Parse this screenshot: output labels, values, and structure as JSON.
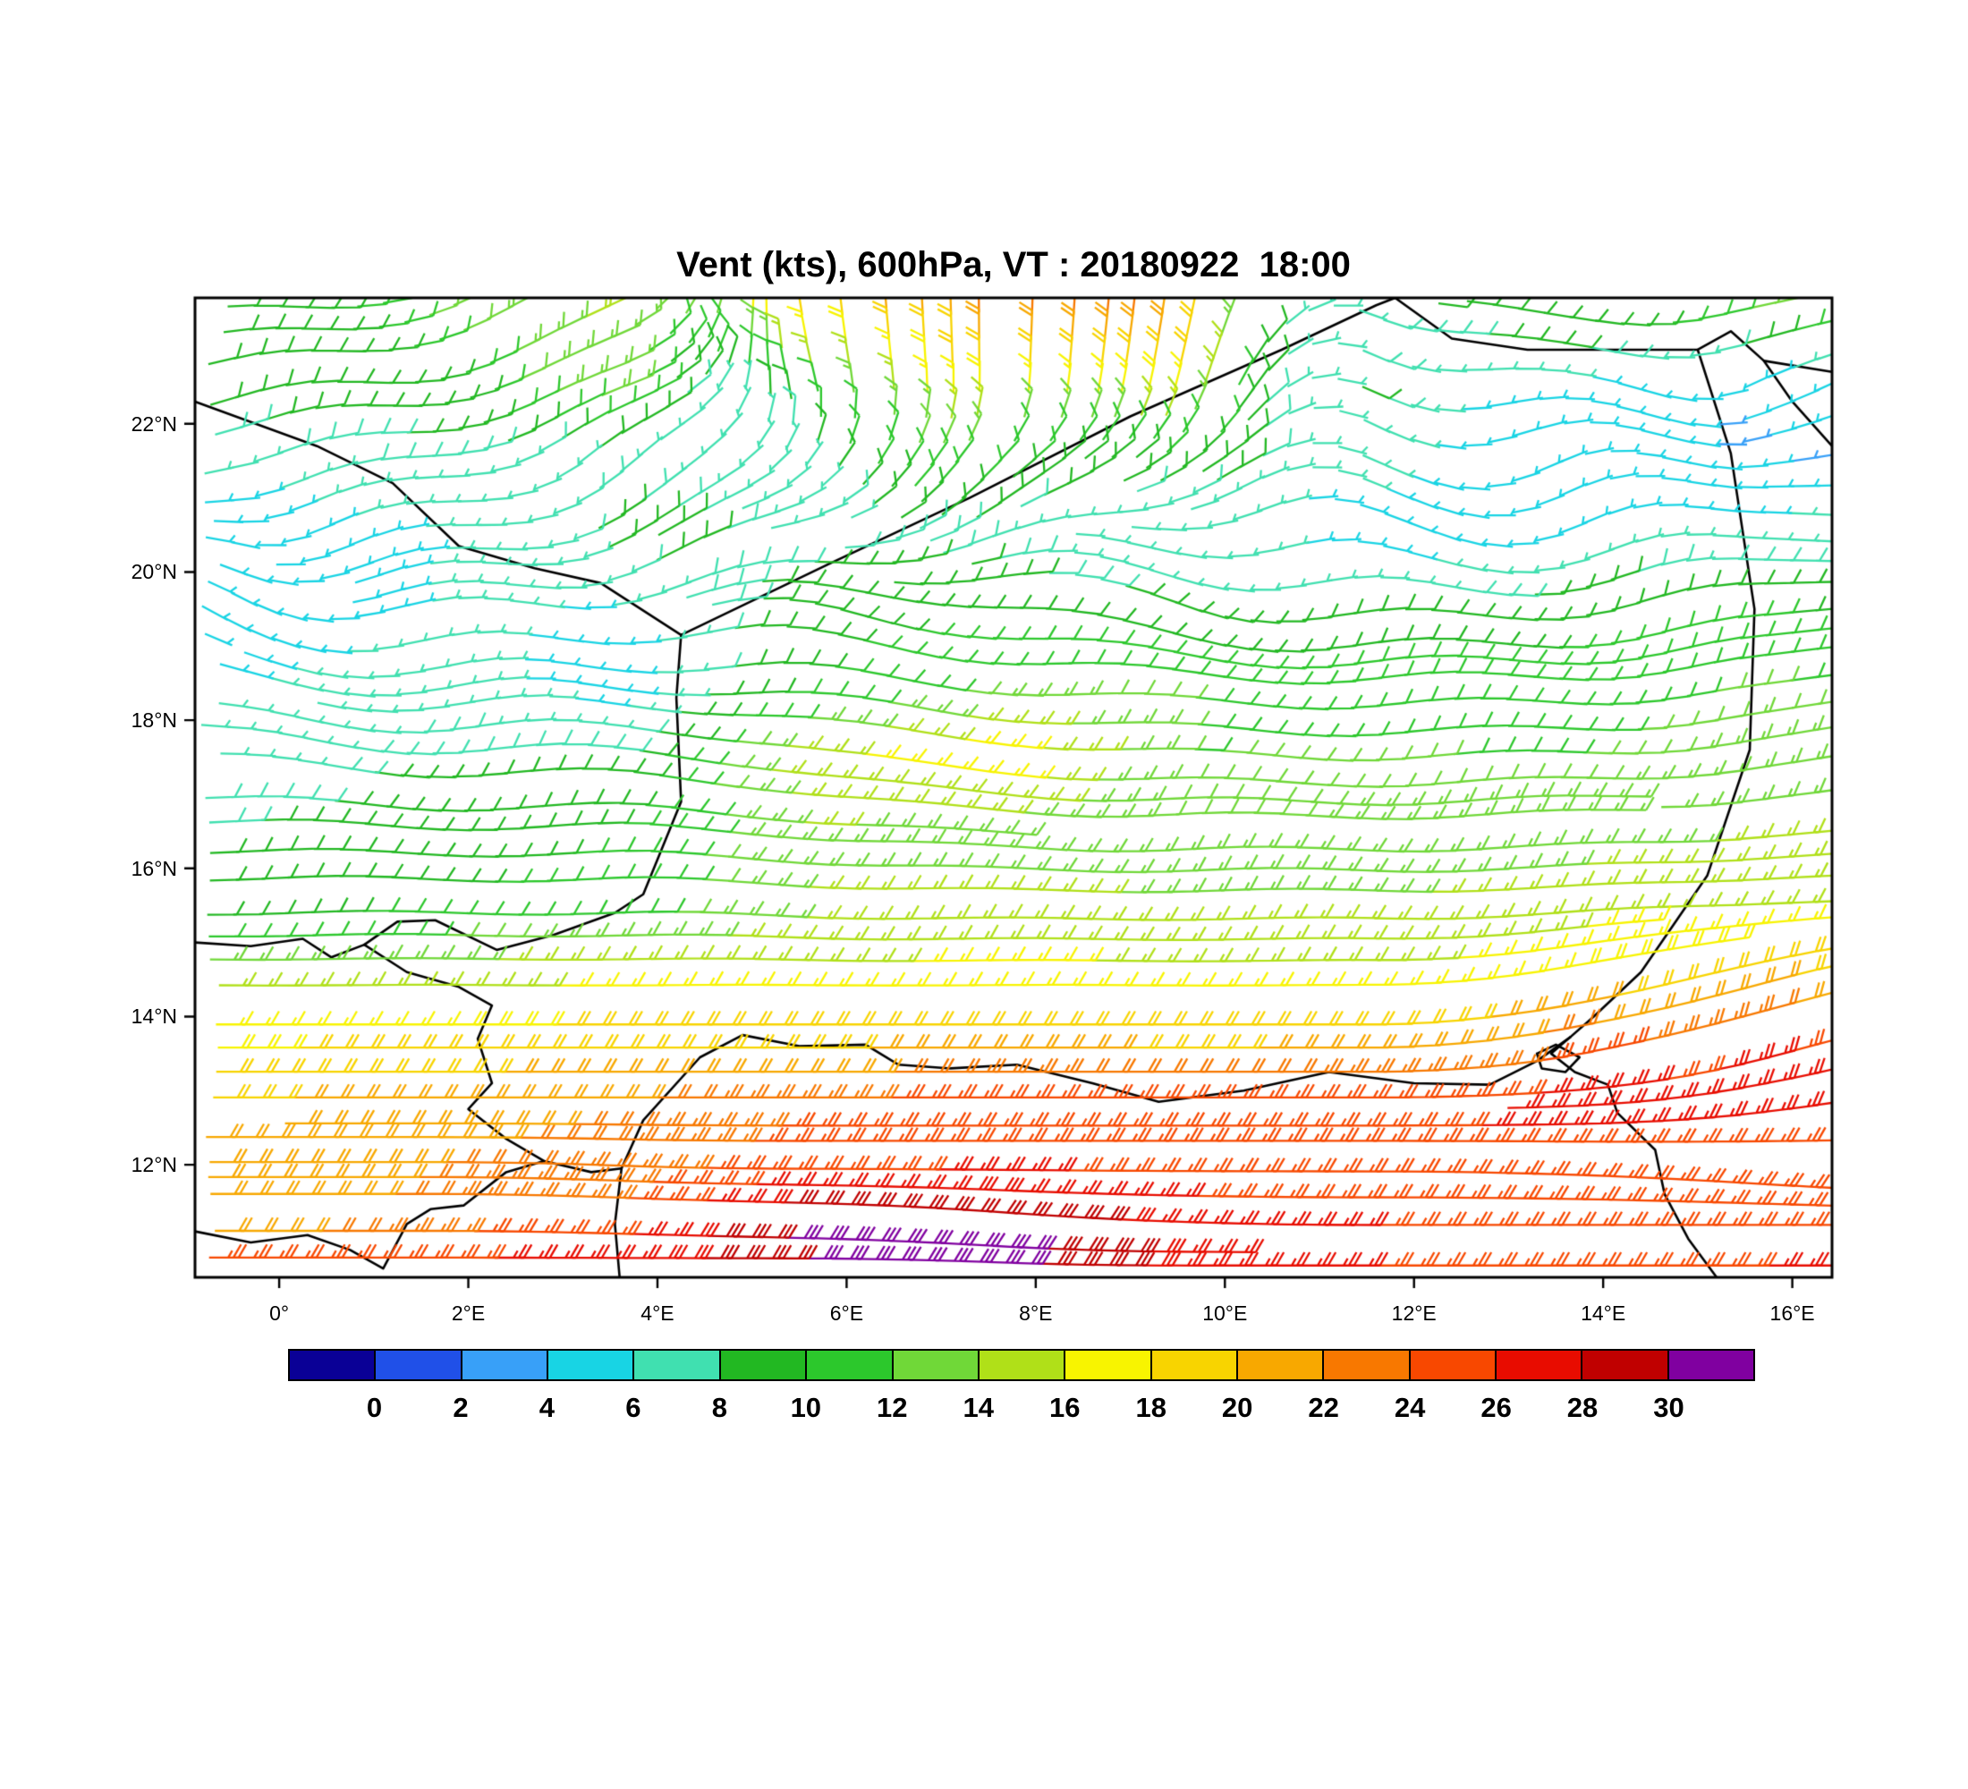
{
  "chart_data": {
    "type": "wind_barbs",
    "title": "Vent (kts), 600hPa, VT : 20180922  18:00",
    "units": "kts",
    "level": "600hPa",
    "valid_time": "20180922 18:00",
    "x_axis": {
      "range": [
        -0.89,
        16.42
      ],
      "tick_values": [
        0,
        2,
        4,
        6,
        8,
        10,
        12,
        14,
        16
      ],
      "tick_labels": [
        "0°",
        "2°E",
        "4°E",
        "6°E",
        "8°E",
        "10°E",
        "12°E",
        "14°E",
        "16°E"
      ]
    },
    "y_axis": {
      "range": [
        10.48,
        23.7
      ],
      "tick_values": [
        12,
        14,
        16,
        18,
        20,
        22
      ],
      "tick_labels": [
        "12°N",
        "14°N",
        "16°N",
        "18°N",
        "20°N",
        "22°N"
      ]
    },
    "colorbar": {
      "boundaries": [
        0,
        2,
        4,
        6,
        8,
        10,
        12,
        14,
        16,
        18,
        20,
        22,
        24,
        26,
        28,
        30
      ],
      "tick_labels": [
        "0",
        "2",
        "4",
        "6",
        "8",
        "10",
        "12",
        "14",
        "16",
        "18",
        "20",
        "22",
        "24",
        "26",
        "28",
        "30"
      ],
      "colors": [
        "#0A0096",
        "#2050E8",
        "#38A0F8",
        "#18D4E4",
        "#40E0B0",
        "#22B822",
        "#2CC82C",
        "#70D838",
        "#B0E018",
        "#F8F400",
        "#F8D400",
        "#F8A800",
        "#F87800",
        "#F84800",
        "#E80C00",
        "#C00000",
        "#8000A0"
      ]
    },
    "wind_grid": {
      "lons": [
        -0.5,
        1.5,
        3.5,
        5.5,
        7.5,
        9.5,
        11.5,
        13.5,
        15.5
      ],
      "lats": [
        23.5,
        22.5,
        21.5,
        20.5,
        19.5,
        18.5,
        17.5,
        16.5,
        15.5,
        14.5,
        13.5,
        12.8,
        12.0,
        11.2,
        10.7
      ],
      "speed_kts": [
        [
          8,
          12,
          15,
          18,
          24,
          20,
          8,
          10,
          12
        ],
        [
          8,
          9,
          14,
          10,
          20,
          16,
          8,
          5,
          4
        ],
        [
          7,
          8,
          6,
          8,
          12,
          9,
          6,
          4,
          4
        ],
        [
          4,
          6,
          8,
          8,
          7,
          6,
          5,
          5,
          7
        ],
        [
          4,
          6,
          6,
          9,
          10,
          8,
          8,
          9,
          10
        ],
        [
          6,
          7,
          5,
          10,
          12,
          12,
          11,
          11,
          12
        ],
        [
          7,
          8,
          8,
          16,
          18,
          12,
          12,
          12,
          13
        ],
        [
          8,
          9,
          10,
          14,
          13,
          12,
          13,
          13,
          14
        ],
        [
          9,
          10,
          11,
          14,
          15,
          14,
          14,
          15,
          16
        ],
        [
          15,
          15,
          16,
          16,
          17,
          16,
          16,
          18,
          20
        ],
        [
          18,
          19,
          20,
          20,
          21,
          20,
          21,
          24,
          26
        ],
        [
          20,
          21,
          22,
          24,
          26,
          26,
          26,
          27,
          27
        ],
        [
          21,
          22,
          23,
          25,
          26,
          25,
          25,
          25,
          24
        ],
        [
          20,
          23,
          25,
          31,
          30,
          27,
          26,
          25,
          25
        ],
        [
          25,
          26,
          27,
          30,
          31,
          27,
          26,
          25,
          26
        ]
      ],
      "dir_from_deg": [
        [
          90,
          75,
          60,
          350,
          0,
          10,
          120,
          90,
          85
        ],
        [
          85,
          80,
          70,
          340,
          0,
          15,
          110,
          90,
          80
        ],
        [
          85,
          75,
          60,
          30,
          40,
          60,
          100,
          85,
          75
        ],
        [
          90,
          80,
          70,
          70,
          80,
          90,
          95,
          85,
          80
        ],
        [
          100,
          90,
          80,
          95,
          100,
          100,
          90,
          85,
          80
        ],
        [
          95,
          90,
          85,
          95,
          95,
          92,
          90,
          88,
          85
        ],
        [
          95,
          92,
          90,
          100,
          95,
          92,
          90,
          88,
          85
        ],
        [
          92,
          90,
          90,
          95,
          92,
          90,
          90,
          88,
          86
        ],
        [
          90,
          90,
          90,
          92,
          90,
          90,
          90,
          88,
          87
        ],
        [
          90,
          90,
          90,
          90,
          90,
          90,
          90,
          80,
          75
        ],
        [
          90,
          90,
          90,
          90,
          90,
          90,
          90,
          80,
          75
        ],
        [
          90,
          90,
          90,
          90,
          90,
          90,
          90,
          88,
          82
        ],
        [
          90,
          90,
          92,
          90,
          90,
          90,
          90,
          92,
          95
        ],
        [
          90,
          90,
          92,
          92,
          95,
          92,
          90,
          90,
          90
        ],
        [
          90,
          90,
          90,
          90,
          92,
          90,
          90,
          90,
          90
        ]
      ]
    },
    "map_borders": [
      {
        "name": "mali-algeria",
        "points": [
          [
            -0.89,
            22.3
          ],
          [
            0.4,
            21.7
          ],
          [
            1.2,
            21.2
          ],
          [
            1.9,
            20.35
          ],
          [
            2.7,
            20.05
          ],
          [
            3.4,
            19.85
          ],
          [
            4.25,
            19.15
          ]
        ]
      },
      {
        "name": "algeria-niger",
        "points": [
          [
            4.25,
            19.15
          ],
          [
            5.8,
            20.1
          ],
          [
            7.3,
            21.0
          ],
          [
            9.0,
            22.1
          ],
          [
            10.6,
            23.0
          ],
          [
            11.6,
            23.6
          ],
          [
            11.8,
            23.7
          ]
        ]
      },
      {
        "name": "libya-south",
        "points": [
          [
            11.8,
            23.7
          ],
          [
            12.4,
            23.15
          ],
          [
            13.2,
            23.0
          ],
          [
            14.2,
            23.0
          ],
          [
            15.0,
            23.0
          ],
          [
            15.35,
            23.25
          ],
          [
            15.7,
            22.85
          ],
          [
            16.42,
            22.7
          ]
        ]
      },
      {
        "name": "libya-chad",
        "points": [
          [
            15.7,
            22.85
          ],
          [
            16.0,
            22.3
          ],
          [
            16.42,
            21.7
          ]
        ]
      },
      {
        "name": "niger-chad",
        "points": [
          [
            15.0,
            23.0
          ],
          [
            15.35,
            21.6
          ],
          [
            15.6,
            19.5
          ],
          [
            15.55,
            17.6
          ],
          [
            15.1,
            15.9
          ],
          [
            14.4,
            14.6
          ],
          [
            13.9,
            14.0
          ],
          [
            13.65,
            13.72
          ]
        ]
      },
      {
        "name": "chad-nigeria-cameroon",
        "points": [
          [
            13.65,
            13.72
          ],
          [
            13.45,
            13.5
          ],
          [
            13.7,
            13.25
          ],
          [
            14.05,
            13.08
          ],
          [
            14.15,
            12.7
          ],
          [
            14.55,
            12.2
          ],
          [
            14.65,
            11.6
          ],
          [
            14.9,
            11.0
          ],
          [
            15.2,
            10.48
          ]
        ]
      },
      {
        "name": "lake-chad",
        "points": [
          [
            13.3,
            13.5
          ],
          [
            13.5,
            13.62
          ],
          [
            13.75,
            13.45
          ],
          [
            13.6,
            13.25
          ],
          [
            13.35,
            13.3
          ],
          [
            13.3,
            13.5
          ]
        ]
      },
      {
        "name": "niger-nigeria",
        "points": [
          [
            3.62,
            11.95
          ],
          [
            3.85,
            12.6
          ],
          [
            4.45,
            13.45
          ],
          [
            4.9,
            13.75
          ],
          [
            5.5,
            13.6
          ],
          [
            6.2,
            13.62
          ],
          [
            6.55,
            13.35
          ],
          [
            7.1,
            13.3
          ],
          [
            7.8,
            13.35
          ],
          [
            8.6,
            13.1
          ],
          [
            9.3,
            12.85
          ],
          [
            10.2,
            13.0
          ],
          [
            11.1,
            13.25
          ],
          [
            12.0,
            13.1
          ],
          [
            12.8,
            13.08
          ],
          [
            13.3,
            13.4
          ],
          [
            13.65,
            13.72
          ]
        ]
      },
      {
        "name": "niger-benin-burkina",
        "points": [
          [
            0.9,
            14.97
          ],
          [
            1.35,
            14.6
          ],
          [
            1.9,
            14.4
          ],
          [
            2.25,
            14.15
          ],
          [
            2.1,
            13.7
          ],
          [
            2.25,
            13.1
          ],
          [
            2.0,
            12.75
          ],
          [
            2.4,
            12.35
          ],
          [
            2.8,
            12.05
          ],
          [
            3.3,
            11.9
          ],
          [
            3.62,
            11.95
          ]
        ]
      },
      {
        "name": "mali-burkina",
        "points": [
          [
            -0.89,
            15.0
          ],
          [
            -0.3,
            14.95
          ],
          [
            0.25,
            15.05
          ],
          [
            0.55,
            14.8
          ],
          [
            0.9,
            14.97
          ]
        ]
      },
      {
        "name": "mali-niger",
        "points": [
          [
            4.25,
            19.15
          ],
          [
            4.2,
            18.3
          ],
          [
            4.25,
            16.9
          ],
          [
            3.85,
            15.65
          ],
          [
            3.55,
            15.4
          ],
          [
            2.9,
            15.1
          ],
          [
            2.3,
            14.9
          ],
          [
            1.65,
            15.3
          ],
          [
            1.25,
            15.28
          ],
          [
            0.9,
            14.97
          ]
        ]
      },
      {
        "name": "burkina-togo-benin",
        "points": [
          [
            -0.89,
            11.1
          ],
          [
            -0.3,
            10.95
          ],
          [
            0.3,
            11.05
          ],
          [
            0.75,
            10.85
          ],
          [
            1.1,
            10.6
          ],
          [
            1.35,
            11.2
          ],
          [
            1.6,
            11.4
          ],
          [
            1.95,
            11.45
          ],
          [
            2.4,
            11.9
          ],
          [
            2.8,
            12.05
          ]
        ]
      },
      {
        "name": "benin-nigeria",
        "points": [
          [
            3.62,
            11.95
          ],
          [
            3.55,
            11.2
          ],
          [
            3.6,
            10.48
          ]
        ]
      }
    ]
  }
}
